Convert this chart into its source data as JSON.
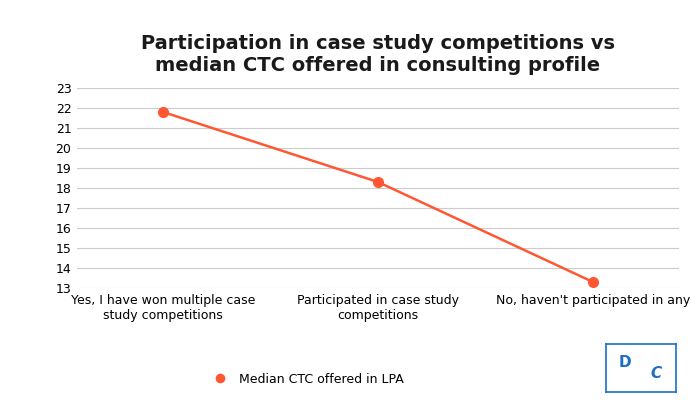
{
  "title": "Participation in case study competitions vs\nmedian CTC offered in consulting profile",
  "categories": [
    "Yes, I have won multiple case\nstudy competitions",
    "Participated in case study\ncompetitions",
    "No, haven't participated in any"
  ],
  "values": [
    21.8,
    18.3,
    13.3
  ],
  "line_color": "#FF5733",
  "marker_color": "#FF5733",
  "ylim": [
    13,
    23
  ],
  "yticks": [
    13,
    14,
    15,
    16,
    17,
    18,
    19,
    20,
    21,
    22,
    23
  ],
  "legend_label": "Median CTC offered in LPA",
  "background_color": "#ffffff",
  "title_fontsize": 14,
  "tick_fontsize": 9,
  "legend_fontsize": 9,
  "grid_color": "#cccccc",
  "marker_size": 7,
  "line_width": 1.8,
  "dc_color": "#1a6fc4"
}
